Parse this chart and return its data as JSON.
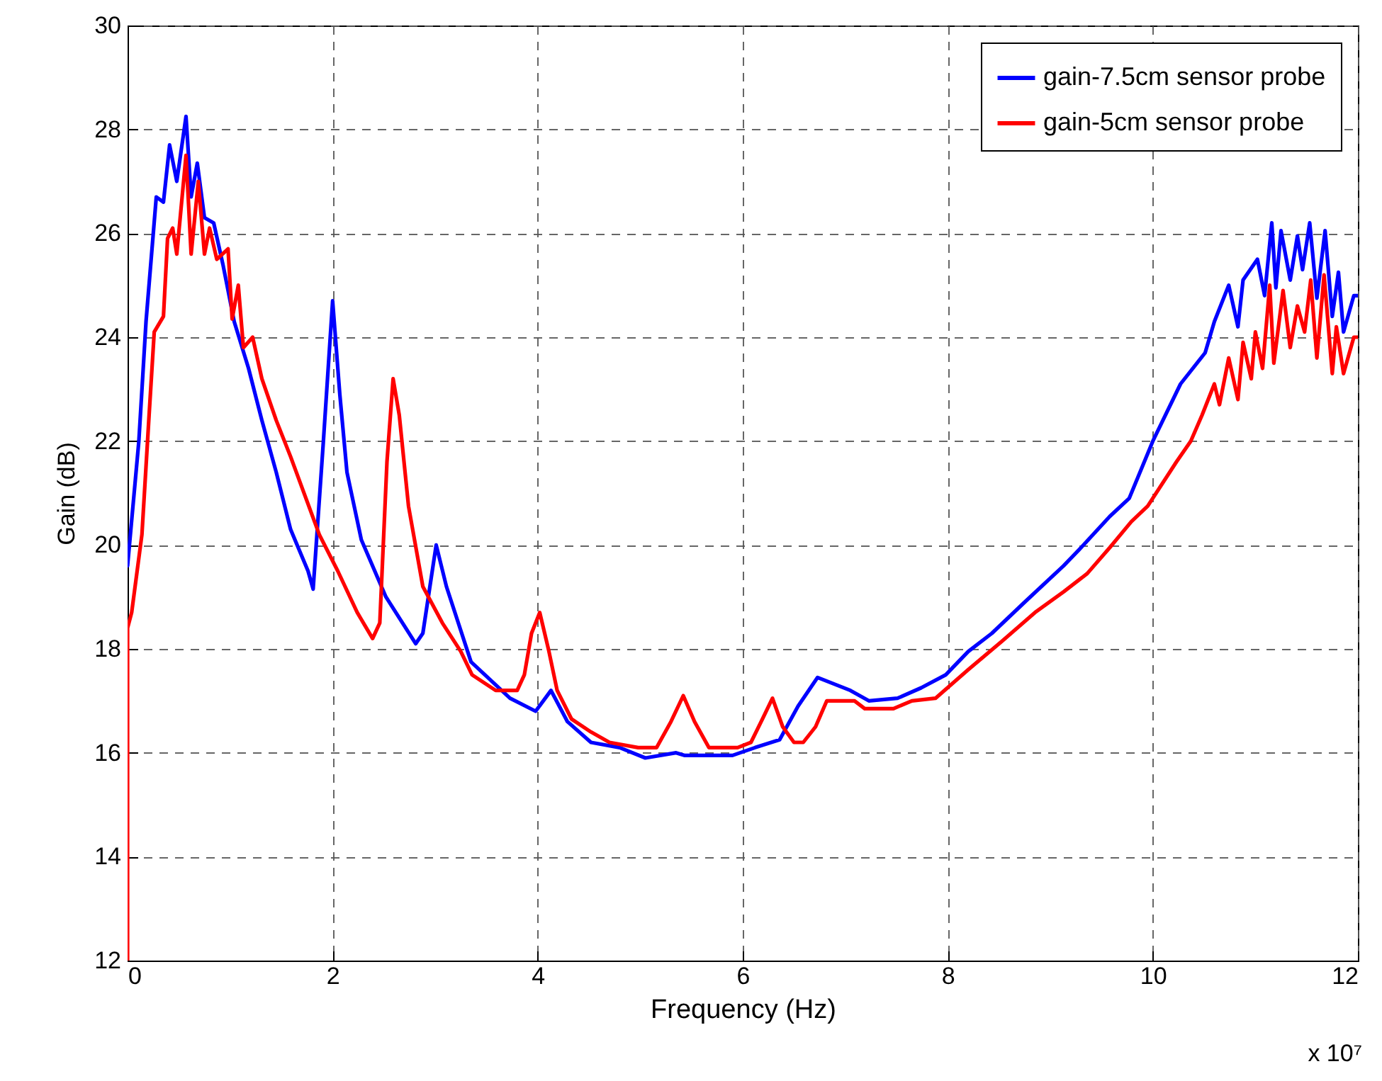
{
  "chart_data": {
    "type": "line",
    "xlabel": "Frequency (Hz)",
    "ylabel": "Gain (dB)",
    "annotations": [
      "x 10⁷"
    ],
    "xlim": [
      0,
      12
    ],
    "xticks": [
      0,
      2,
      4,
      6,
      8,
      10,
      12
    ],
    "ylim": [
      12,
      30
    ],
    "yticks": [
      12,
      14,
      16,
      18,
      20,
      22,
      24,
      26,
      28,
      30
    ],
    "grid": true,
    "legend": "top right",
    "line_style": "solid",
    "marker": "none",
    "series": [
      {
        "name": "gain-7.5cm sensor probe",
        "color": "#0000ff",
        "x": [
          0,
          0.11,
          0.18,
          0.28,
          0.35,
          0.41,
          0.48,
          0.57,
          0.62,
          0.68,
          0.75,
          0.84,
          0.93,
          1.04,
          1.18,
          1.31,
          1.45,
          1.59,
          1.76,
          1.81,
          1.91,
          2.0,
          2.07,
          2.14,
          2.28,
          2.52,
          2.81,
          2.88,
          3.01,
          3.11,
          3.35,
          3.73,
          3.98,
          4.13,
          4.29,
          4.52,
          4.8,
          5.05,
          5.35,
          5.43,
          5.9,
          6.12,
          6.36,
          6.54,
          6.73,
          7.05,
          7.23,
          7.51,
          7.74,
          7.98,
          8.2,
          8.43,
          8.75,
          9.13,
          9.3,
          9.58,
          9.77,
          10.0,
          10.27,
          10.51,
          10.6,
          10.74,
          10.83,
          10.88,
          11.02,
          11.09,
          11.16,
          11.2,
          11.25,
          11.34,
          11.41,
          11.46,
          11.53,
          11.6,
          11.68,
          11.75,
          11.81,
          11.86,
          11.96,
          12.0
        ],
        "values": [
          19.6,
          22.0,
          24.3,
          26.7,
          26.6,
          27.7,
          27.0,
          28.25,
          26.7,
          27.35,
          26.3,
          26.2,
          25.4,
          24.3,
          23.4,
          22.4,
          21.4,
          20.3,
          19.5,
          19.15,
          22.0,
          24.7,
          22.9,
          21.4,
          20.1,
          19.0,
          18.1,
          18.3,
          20.0,
          19.2,
          17.75,
          17.05,
          16.8,
          17.2,
          16.6,
          16.2,
          16.1,
          15.9,
          16.0,
          15.95,
          15.95,
          16.1,
          16.25,
          16.9,
          17.45,
          17.2,
          17.0,
          17.05,
          17.25,
          17.5,
          17.95,
          18.3,
          18.9,
          19.6,
          19.95,
          20.55,
          20.9,
          22.0,
          23.1,
          23.7,
          24.3,
          25.0,
          24.2,
          25.1,
          25.5,
          24.8,
          26.2,
          24.95,
          26.05,
          25.1,
          25.95,
          25.3,
          26.2,
          24.75,
          26.05,
          24.4,
          25.25,
          24.1,
          24.8,
          24.8
        ]
      },
      {
        "name": "gain-5cm sensor probe",
        "color": "#ff0000",
        "x": [
          0,
          0,
          0.04,
          0.14,
          0.21,
          0.26,
          0.35,
          0.39,
          0.44,
          0.48,
          0.57,
          0.62,
          0.69,
          0.75,
          0.8,
          0.87,
          0.98,
          1.02,
          1.08,
          1.13,
          1.22,
          1.31,
          1.45,
          1.59,
          1.73,
          1.87,
          2.05,
          2.24,
          2.39,
          2.46,
          2.53,
          2.59,
          2.65,
          2.74,
          2.88,
          3.07,
          3.25,
          3.36,
          3.59,
          3.8,
          3.87,
          3.94,
          4.02,
          4.11,
          4.19,
          4.33,
          4.52,
          4.7,
          4.98,
          5.16,
          5.3,
          5.42,
          5.53,
          5.67,
          5.95,
          6.08,
          6.18,
          6.29,
          6.39,
          6.5,
          6.59,
          6.71,
          6.82,
          7.09,
          7.19,
          7.47,
          7.65,
          7.88,
          8.2,
          8.53,
          8.85,
          9.13,
          9.36,
          9.58,
          9.79,
          9.95,
          10.23,
          10.37,
          10.48,
          10.6,
          10.65,
          10.74,
          10.83,
          10.88,
          10.96,
          11.0,
          11.07,
          11.14,
          11.18,
          11.27,
          11.34,
          11.41,
          11.48,
          11.54,
          11.6,
          11.67,
          11.75,
          11.79,
          11.86,
          11.96,
          12.0
        ],
        "values": [
          12,
          18.4,
          18.7,
          20.2,
          22.5,
          24.1,
          24.4,
          25.9,
          26.1,
          25.6,
          27.5,
          25.6,
          27.0,
          25.6,
          26.1,
          25.5,
          25.7,
          24.35,
          25.0,
          23.8,
          24.0,
          23.2,
          22.4,
          21.7,
          20.95,
          20.2,
          19.5,
          18.7,
          18.2,
          18.5,
          21.6,
          23.2,
          22.5,
          20.75,
          19.2,
          18.5,
          17.95,
          17.5,
          17.2,
          17.2,
          17.5,
          18.3,
          18.7,
          17.95,
          17.2,
          16.65,
          16.4,
          16.2,
          16.1,
          16.1,
          16.6,
          17.1,
          16.6,
          16.1,
          16.1,
          16.2,
          16.6,
          17.05,
          16.5,
          16.2,
          16.2,
          16.5,
          17.0,
          17.0,
          16.85,
          16.85,
          17.0,
          17.05,
          17.6,
          18.15,
          18.7,
          19.1,
          19.45,
          19.95,
          20.45,
          20.75,
          21.6,
          22.0,
          22.5,
          23.1,
          22.7,
          23.6,
          22.8,
          23.9,
          23.2,
          24.1,
          23.4,
          25.0,
          23.5,
          24.9,
          23.8,
          24.6,
          24.1,
          25.1,
          23.6,
          25.2,
          23.3,
          24.2,
          23.3,
          24.0,
          24.0
        ]
      }
    ]
  }
}
